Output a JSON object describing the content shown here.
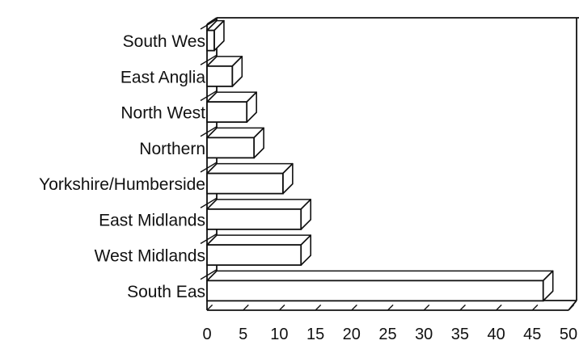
{
  "chart_data": {
    "type": "bar",
    "orientation": "horizontal",
    "style": "3d",
    "title": "",
    "xlabel": "",
    "ylabel": "",
    "categories": [
      "South Wes",
      "East Anglia",
      "North West",
      "Northern",
      "Yorkshire/Humberside",
      "East Midlands",
      "West Midlands",
      "South Eas"
    ],
    "values": [
      1,
      3.5,
      5.5,
      6.5,
      10.5,
      13,
      13,
      46.5
    ],
    "xlim": [
      0,
      50
    ],
    "xticks": [
      "0",
      "5",
      "10",
      "15",
      "20",
      "25",
      "30",
      "35",
      "40",
      "45",
      "50"
    ],
    "grid": false,
    "legend": "none",
    "colors": {
      "bar_fill": "#ffffff",
      "stroke": "#111111"
    }
  }
}
